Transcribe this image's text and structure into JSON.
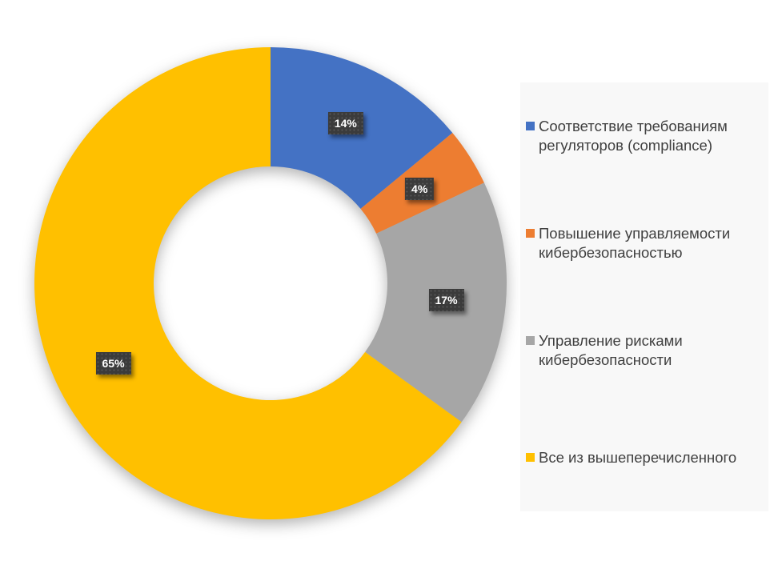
{
  "chart_data": {
    "type": "pie",
    "subtype": "donut",
    "title": "",
    "direction": "clockwise",
    "start_angle_deg": 0,
    "hole_ratio": 0.495,
    "legend_position": "right",
    "legend_background": "#F8F8F8",
    "data_label_bg": "#3B3B3B",
    "data_label_text_color": "#FFFFFF",
    "slices": [
      {
        "label": "Соответствие требованиям регуляторов (compliance)",
        "value": 14,
        "display": "14%",
        "color": "#4472C4"
      },
      {
        "label": "Повышение управляемости кибербезопасностью",
        "value": 4,
        "display": "4%",
        "color": "#ED7D31"
      },
      {
        "label": "Управление рисками кибербезопасности",
        "value": 17,
        "display": "17%",
        "color": "#A6A6A6"
      },
      {
        "label": "Все из вышеперечисленного",
        "value": 65,
        "display": "65%",
        "color": "#FFC000"
      }
    ]
  }
}
